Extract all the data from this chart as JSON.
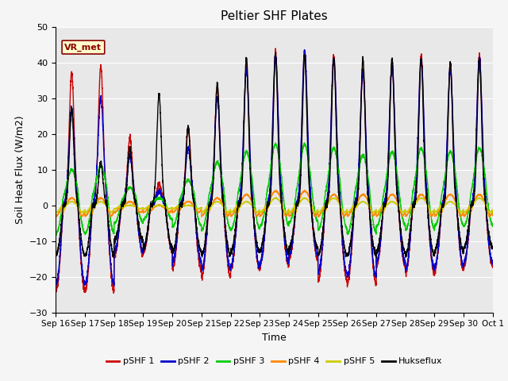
{
  "title": "Peltier SHF Plates",
  "xlabel": "Time",
  "ylabel": "Soil Heat Flux (W/m2)",
  "ylim": [
    -30,
    50
  ],
  "series_colors": {
    "pSHF 1": "#cc0000",
    "pSHF 2": "#0000cc",
    "pSHF 3": "#00cc00",
    "pSHF 4": "#ff8800",
    "pSHF 5": "#cccc00",
    "Hukseflux": "#000000"
  },
  "xtick_labels": [
    "Sep 16",
    "Sep 17",
    "Sep 18",
    "Sep 19",
    "Sep 20",
    "Sep 21",
    "Sep 22",
    "Sep 23",
    "Sep 24",
    "Sep 25",
    "Sep 26",
    "Sep 27",
    "Sep 28",
    "Sep 29",
    "Sep 30",
    "Oct 1"
  ],
  "annotation_text": "VR_met",
  "annotation_color": "#8B0000",
  "annotation_bg": "#ffffcc",
  "plot_bg": "#e8e8e8",
  "fig_bg": "#f5f5f5",
  "grid_color": "#ffffff",
  "num_days": 15,
  "title_fontsize": 11,
  "label_fontsize": 9,
  "tick_fontsize": 8,
  "day_peaks_pshf1": [
    37,
    39,
    19,
    6,
    22,
    33,
    39,
    43,
    43,
    42,
    38,
    40,
    42,
    39,
    42
  ],
  "day_peaks_pshf2": [
    27,
    30,
    14,
    4,
    16,
    30,
    38,
    42,
    43,
    41,
    37,
    39,
    41,
    38,
    41
  ],
  "day_peaks_pshf3": [
    10,
    11,
    5,
    2,
    7,
    12,
    15,
    17,
    17,
    16,
    14,
    15,
    16,
    15,
    16
  ],
  "day_peaks_pshf4": [
    2,
    2,
    1,
    0,
    1,
    2,
    3,
    4,
    4,
    3,
    3,
    3,
    3,
    3,
    3
  ],
  "day_peaks_pshf5": [
    1,
    1,
    0,
    0,
    0,
    1,
    1,
    2,
    2,
    2,
    1,
    1,
    2,
    1,
    2
  ],
  "day_peaks_hux": [
    27,
    12,
    16,
    31,
    22,
    34,
    41,
    42,
    42,
    41,
    41,
    41,
    41,
    40,
    41
  ],
  "night_pshf1": [
    -24,
    -24,
    -14,
    -13,
    -18,
    -20,
    -18,
    -17,
    -15,
    -21,
    -22,
    -17,
    -19,
    -18,
    -17
  ],
  "night_pshf2": [
    -22,
    -22,
    -13,
    -12,
    -16,
    -18,
    -17,
    -16,
    -14,
    -19,
    -20,
    -16,
    -18,
    -17,
    -16
  ],
  "night_pshf3": [
    -8,
    -8,
    -5,
    -4,
    -6,
    -7,
    -7,
    -6,
    -5,
    -7,
    -8,
    -6,
    -7,
    -6,
    -6
  ],
  "night_pshf4": [
    -3,
    -3,
    -2,
    -2,
    -2,
    -3,
    -3,
    -3,
    -3,
    -3,
    -3,
    -3,
    -3,
    -3,
    -3
  ],
  "night_pshf5": [
    -2,
    -2,
    -1,
    -1,
    -1,
    -2,
    -2,
    -2,
    -2,
    -2,
    -2,
    -2,
    -2,
    -2,
    -2
  ],
  "night_hux": [
    -14,
    -14,
    -10,
    -12,
    -13,
    -14,
    -13,
    -13,
    -12,
    -14,
    -14,
    -13,
    -14,
    -13,
    -12
  ]
}
